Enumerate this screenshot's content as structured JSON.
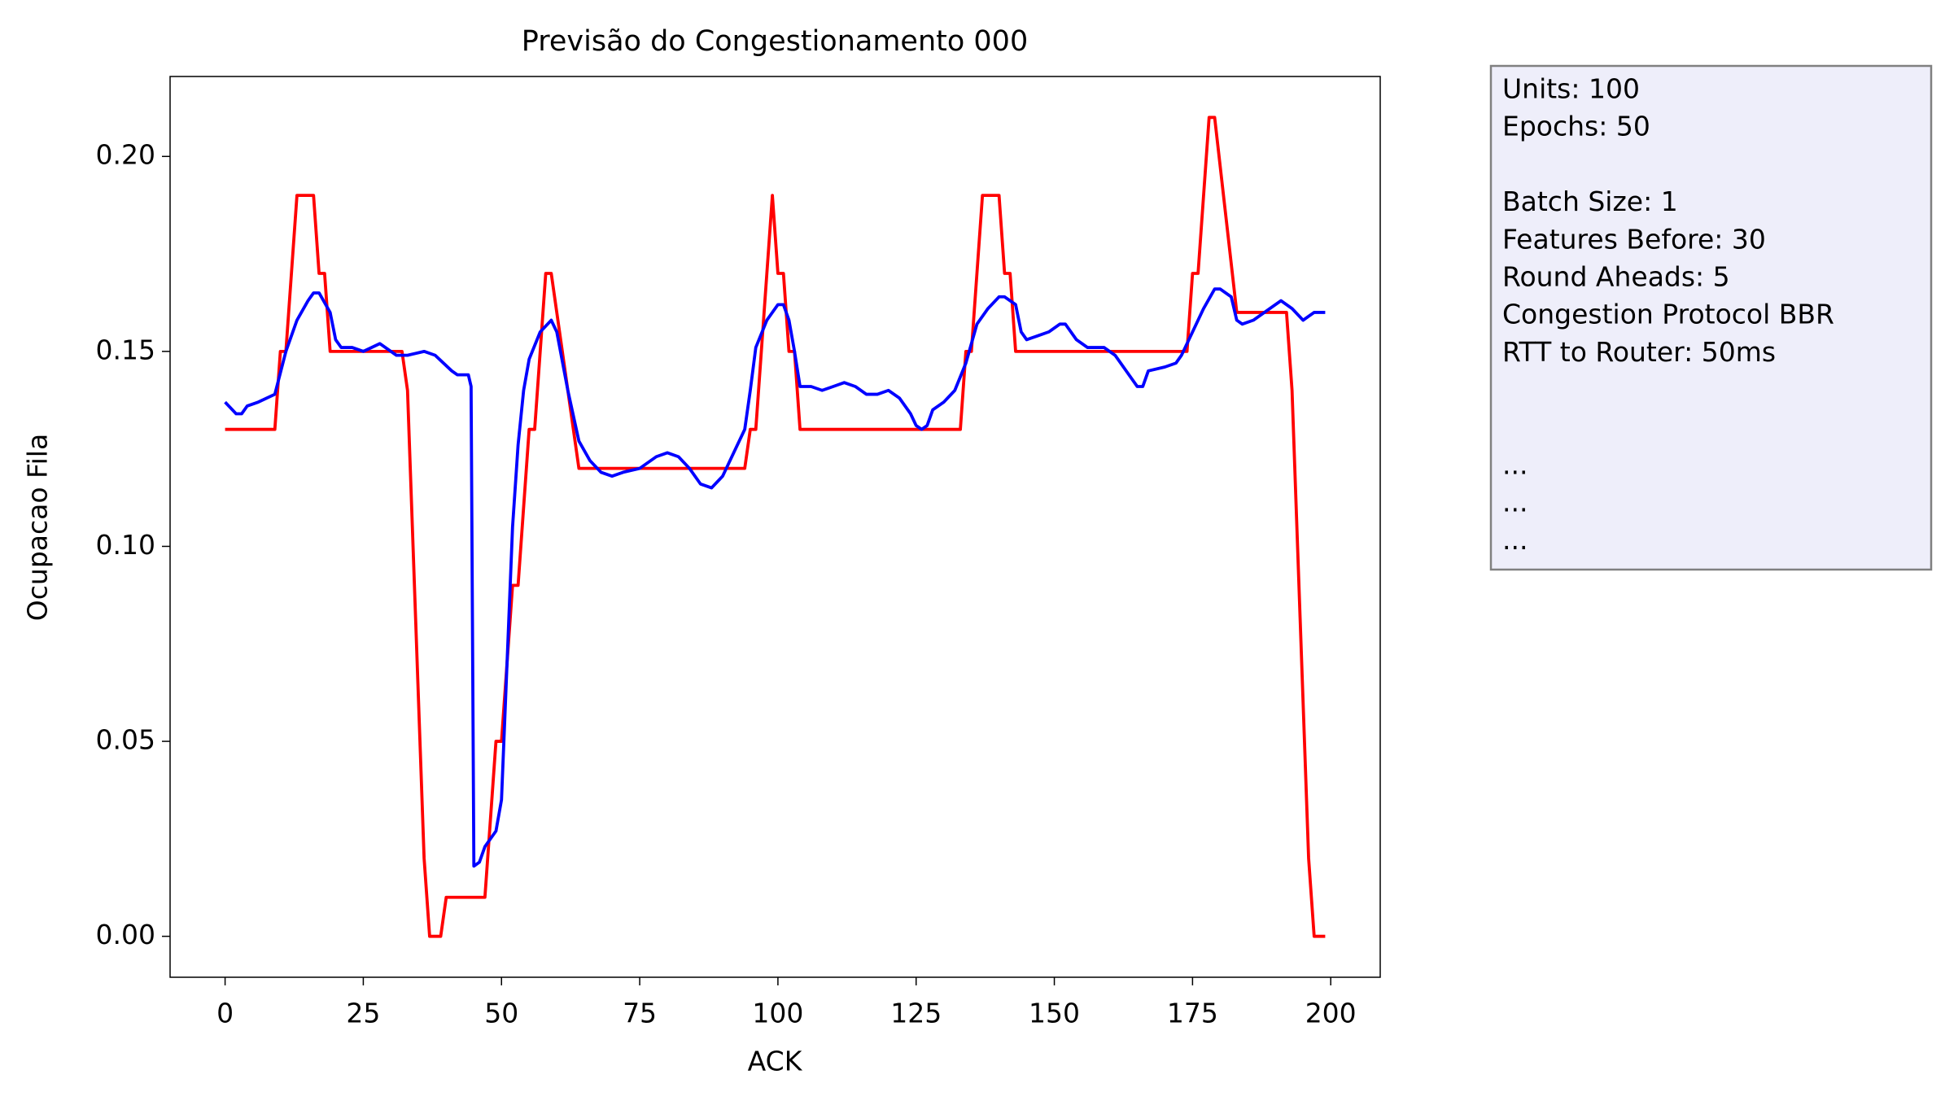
{
  "chart_data": {
    "type": "line",
    "title": "Previsão do Congestionamento 000",
    "x_label": "ACK",
    "y_label": "Ocupacao Fila",
    "xlim": [
      -9.95,
      208.95
    ],
    "ylim": [
      -0.0105,
      0.2205
    ],
    "xticks": [
      0,
      25,
      50,
      75,
      100,
      125,
      150,
      175,
      200
    ],
    "yticks": [
      {
        "value": 0.0,
        "label": "0.00"
      },
      0.05,
      {
        "value": 0.1,
        "label": "0.10"
      },
      0.15,
      {
        "value": 0.2,
        "label": "0.20"
      }
    ],
    "grid": false,
    "series": [
      {
        "color": "#ff0000",
        "x": [
          0,
          9,
          10,
          11,
          13,
          16,
          17,
          18,
          19,
          32,
          33,
          36,
          37,
          39,
          40,
          47,
          49,
          50,
          52,
          53,
          55,
          56,
          58,
          59,
          64,
          94,
          95,
          96,
          97,
          98,
          99,
          100,
          101,
          102,
          103,
          104,
          133,
          134,
          135,
          137,
          140,
          141,
          142,
          143,
          174,
          175,
          176,
          178,
          179,
          183,
          192,
          193,
          196,
          197,
          199
        ],
        "values": [
          0.13,
          0.13,
          0.15,
          0.15,
          0.19,
          0.19,
          0.17,
          0.17,
          0.15,
          0.15,
          0.14,
          0.02,
          0,
          0,
          0.01,
          0.01,
          0.05,
          0.05,
          0.09,
          0.09,
          0.13,
          0.13,
          0.17,
          0.17,
          0.12,
          0.12,
          0.13,
          0.13,
          0.15,
          0.17,
          0.19,
          0.17,
          0.17,
          0.15,
          0.15,
          0.13,
          0.13,
          0.15,
          0.15,
          0.19,
          0.19,
          0.17,
          0.17,
          0.15,
          0.15,
          0.17,
          0.17,
          0.21,
          0.21,
          0.16,
          0.16,
          0.14,
          0.02,
          0,
          0
        ]
      },
      {
        "color": "#0000ff",
        "x": [
          0,
          2,
          3,
          4,
          6,
          9,
          11,
          13,
          15,
          16,
          17,
          19,
          20,
          21,
          23,
          25,
          28,
          31,
          33,
          36,
          38,
          41,
          42,
          44,
          44.5,
          45,
          46,
          47,
          49,
          50,
          51,
          52,
          53,
          54,
          55,
          57,
          59,
          60,
          62,
          64,
          66,
          68,
          70,
          72,
          75,
          78,
          80,
          82,
          84,
          86,
          88,
          90,
          92,
          94,
          95,
          96,
          98,
          99,
          100,
          101,
          102,
          103,
          104,
          106,
          108,
          110,
          112,
          114,
          116,
          118,
          120,
          122,
          124,
          125,
          126,
          127,
          128,
          130,
          132,
          134,
          136,
          138,
          140,
          141,
          143,
          144,
          145,
          147,
          149,
          151,
          152,
          154,
          156,
          159,
          161,
          163,
          165,
          166,
          167,
          170,
          172,
          173,
          175,
          177,
          179,
          180,
          182,
          183,
          184,
          186,
          188,
          190,
          191,
          193,
          195,
          196,
          197,
          199
        ],
        "values": [
          0.137,
          0.134,
          0.134,
          0.136,
          0.137,
          0.139,
          0.15,
          0.158,
          0.163,
          0.165,
          0.165,
          0.16,
          0.153,
          0.151,
          0.151,
          0.15,
          0.152,
          0.149,
          0.149,
          0.15,
          0.149,
          0.145,
          0.144,
          0.144,
          0.141,
          0.018,
          0.019,
          0.023,
          0.027,
          0.035,
          0.07,
          0.105,
          0.126,
          0.14,
          0.148,
          0.155,
          0.158,
          0.155,
          0.14,
          0.127,
          0.122,
          0.119,
          0.118,
          0.119,
          0.12,
          0.123,
          0.124,
          0.123,
          0.12,
          0.116,
          0.115,
          0.118,
          0.124,
          0.13,
          0.14,
          0.151,
          0.158,
          0.16,
          0.162,
          0.162,
          0.158,
          0.15,
          0.141,
          0.141,
          0.14,
          0.141,
          0.142,
          0.141,
          0.139,
          0.139,
          0.14,
          0.138,
          0.134,
          0.131,
          0.13,
          0.131,
          0.135,
          0.137,
          0.14,
          0.147,
          0.157,
          0.161,
          0.164,
          0.164,
          0.162,
          0.155,
          0.153,
          0.154,
          0.155,
          0.157,
          0.157,
          0.153,
          0.151,
          0.151,
          0.149,
          0.145,
          0.141,
          0.141,
          0.145,
          0.146,
          0.147,
          0.149,
          0.155,
          0.161,
          0.166,
          0.166,
          0.164,
          0.158,
          0.157,
          0.158,
          0.16,
          0.162,
          0.163,
          0.161,
          0.158,
          0.159,
          0.16,
          0.16
        ]
      }
    ],
    "info_box": [
      "Units: 100",
      "Epochs: 50",
      "Batch Size: 1",
      "Features Before: 30",
      "Round Aheads: 5",
      "Congestion Protocol BBR",
      "RTT to Router: 50ms",
      "...",
      "...",
      "..."
    ],
    "info_box_color": "#eeeefa"
  }
}
